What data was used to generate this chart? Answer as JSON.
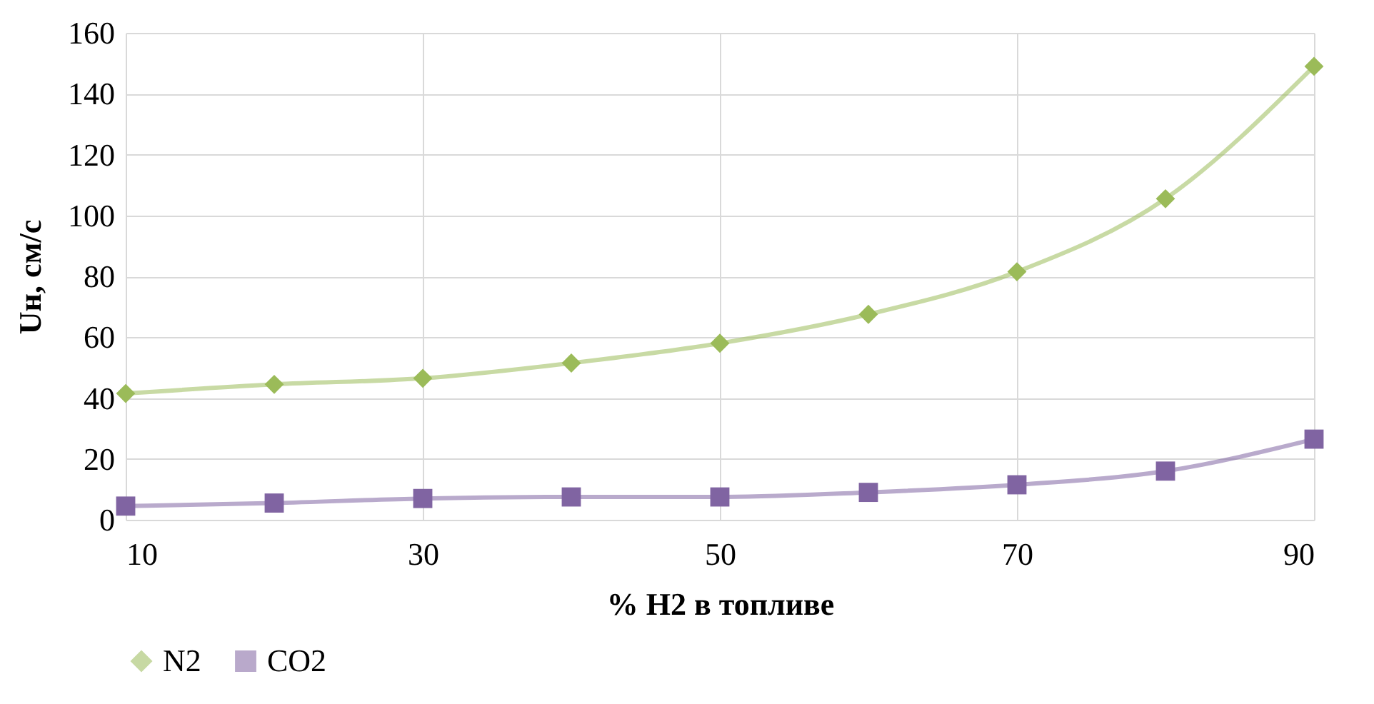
{
  "chart_data": {
    "type": "line",
    "xlabel": "% H2 в топливе",
    "ylabel": "Uн, см/с",
    "x": [
      10,
      20,
      30,
      40,
      50,
      60,
      70,
      80,
      90
    ],
    "series": [
      {
        "name": "N2",
        "color": "#9bbb59",
        "marker": "diamond",
        "values": [
          41.5,
          44.5,
          46.5,
          51.5,
          58,
          67.5,
          81.5,
          105.5,
          149
        ]
      },
      {
        "name": "CO2",
        "color": "#8064a2",
        "marker": "square",
        "values": [
          4.5,
          5.5,
          7,
          7.5,
          7.5,
          9,
          11.5,
          16,
          26.5
        ]
      }
    ],
    "xlim": [
      10,
      90
    ],
    "xticks": [
      10,
      30,
      50,
      70,
      90
    ],
    "ylim": [
      0,
      160
    ],
    "yticks": [
      0,
      20,
      40,
      60,
      80,
      100,
      120,
      140,
      160
    ],
    "grid": true,
    "legend": "bottom",
    "line_style": "solid"
  }
}
